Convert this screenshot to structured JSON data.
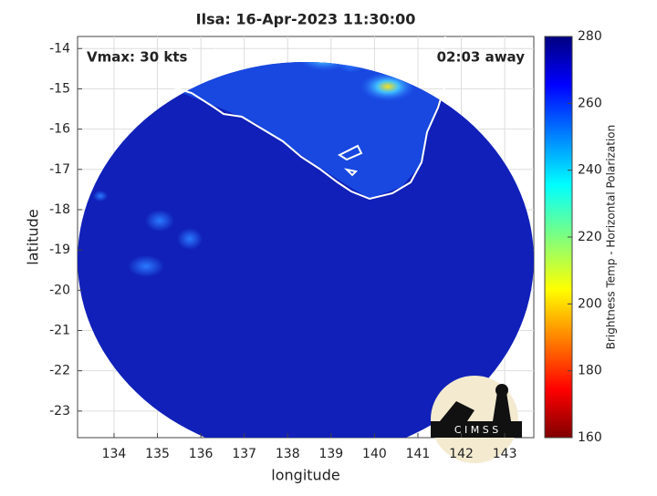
{
  "chart_data": {
    "type": "map",
    "title": "Ilsa: 16-Apr-2023 11:30:00",
    "x_label": "longitude",
    "y_label": "latitude",
    "annotations": [
      "Vmax: 30 kts",
      "02:03 away"
    ],
    "logo": "C I M S S",
    "xlim": [
      133.16,
      143.67
    ],
    "xticks": [
      134,
      135,
      136,
      137,
      138,
      139,
      140,
      141,
      142,
      143
    ],
    "ylim": [
      -23.66,
      -13.7
    ],
    "yticks": [
      -14,
      -15,
      -16,
      -17,
      -18,
      -19,
      -20,
      -21,
      -22,
      -23
    ],
    "grid": true,
    "colorbar": {
      "label": "Brightness Temp - Horizontal Polarization",
      "lim": [
        160,
        280
      ],
      "ticks": [
        160,
        180,
        200,
        220,
        240,
        260,
        280
      ]
    }
  }
}
